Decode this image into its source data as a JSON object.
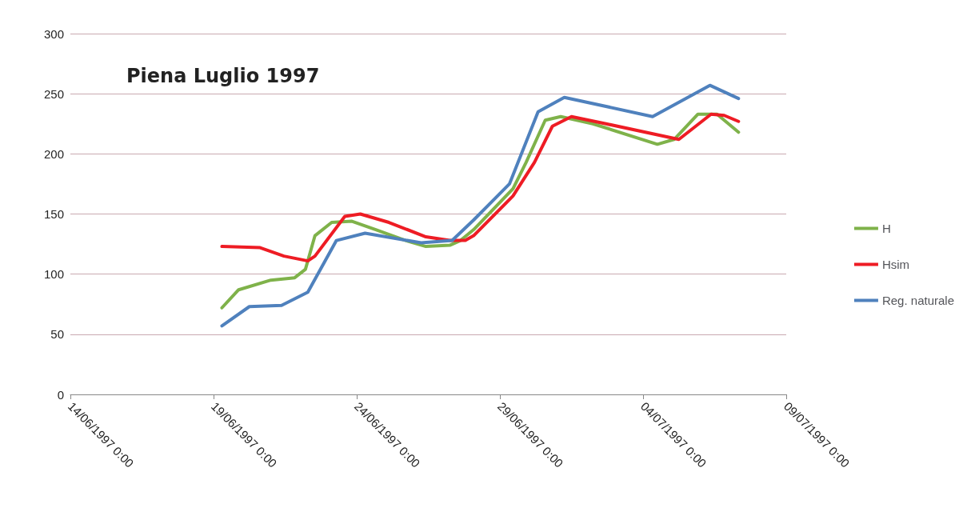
{
  "chart_data": {
    "type": "line",
    "title": "Piena Luglio 1997",
    "legend": "right",
    "grid": "y",
    "marker": "none",
    "line_style": "solid",
    "xlim": [
      "1997-06-14T00:00",
      "1997-07-09T00:00"
    ],
    "xticks": [
      {
        "value": "1997-06-14T00:00",
        "label": "14/06/1997 0:00"
      },
      {
        "value": "1997-06-19T00:00",
        "label": "19/06/1997 0:00"
      },
      {
        "value": "1997-06-24T00:00",
        "label": "24/06/1997 0:00"
      },
      {
        "value": "1997-06-29T00:00",
        "label": "29/06/1997 0:00"
      },
      {
        "value": "1997-07-04T00:00",
        "label": "04/07/1997 0:00"
      },
      {
        "value": "1997-07-09T00:00",
        "label": "09/07/1997 0:00"
      }
    ],
    "ylim": [
      0,
      300
    ],
    "yticks": [
      0,
      50,
      100,
      150,
      200,
      250,
      300
    ],
    "series": [
      {
        "name": "H",
        "color": "#7fb24a",
        "x": [
          "1997-06-19T07:00",
          "1997-06-19T21:00",
          "1997-06-21T00:00",
          "1997-06-21T20:00",
          "1997-06-22T05:00",
          "1997-06-22T13:00",
          "1997-06-23T03:00",
          "1997-06-23T20:00",
          "1997-06-24T16:00",
          "1997-06-25T17:00",
          "1997-06-26T10:00",
          "1997-06-27T06:00",
          "1997-06-27T15:00",
          "1997-06-28T02:00",
          "1997-06-29T11:00",
          "1997-06-29T22:00",
          "1997-06-30T14:00",
          "1997-07-01T03:00",
          "1997-07-02T06:00",
          "1997-07-04T12:00",
          "1997-07-05T02:00",
          "1997-07-05T22:00",
          "1997-07-06T14:00",
          "1997-07-07T08:00"
        ],
        "values": [
          72,
          87,
          95,
          97,
          104,
          132,
          143,
          144,
          137,
          128,
          123,
          124,
          128,
          137,
          171,
          193,
          228,
          231,
          225,
          208,
          212,
          233,
          233,
          218
        ]
      },
      {
        "name": "Hsim",
        "color": "#ee1c24",
        "x": [
          "1997-06-19T07:00",
          "1997-06-20T15:00",
          "1997-06-21T11:00",
          "1997-06-22T07:00",
          "1997-06-22T13:00",
          "1997-06-23T14:00",
          "1997-06-24T03:00",
          "1997-06-25T03:00",
          "1997-06-26T10:00",
          "1997-06-27T06:00",
          "1997-06-27T19:00",
          "1997-06-28T02:00",
          "1997-06-29T11:00",
          "1997-06-30T05:00",
          "1997-06-30T20:00",
          "1997-07-01T12:00",
          "1997-07-02T17:00",
          "1997-07-05T06:00",
          "1997-07-06T09:00",
          "1997-07-06T20:00",
          "1997-07-07T08:00"
        ],
        "values": [
          123,
          122,
          115,
          111,
          115,
          148,
          150,
          143,
          131,
          128,
          128,
          132,
          165,
          193,
          223,
          231,
          225,
          212,
          233,
          232,
          227
        ]
      },
      {
        "name": "Reg. naturale",
        "color": "#4f81bd",
        "x": [
          "1997-06-19T07:00",
          "1997-06-20T06:00",
          "1997-06-21T09:00",
          "1997-06-22T07:00",
          "1997-06-23T07:00",
          "1997-06-24T07:00",
          "1997-06-26T06:00",
          "1997-06-27T08:00",
          "1997-06-28T02:00",
          "1997-06-29T08:00",
          "1997-06-30T08:00",
          "1997-07-01T06:00",
          "1997-07-04T08:00",
          "1997-07-06T08:00",
          "1997-07-07T08:00"
        ],
        "values": [
          57,
          73,
          74,
          85,
          128,
          134,
          126,
          128,
          145,
          175,
          235,
          247,
          231,
          257,
          246
        ]
      }
    ]
  }
}
